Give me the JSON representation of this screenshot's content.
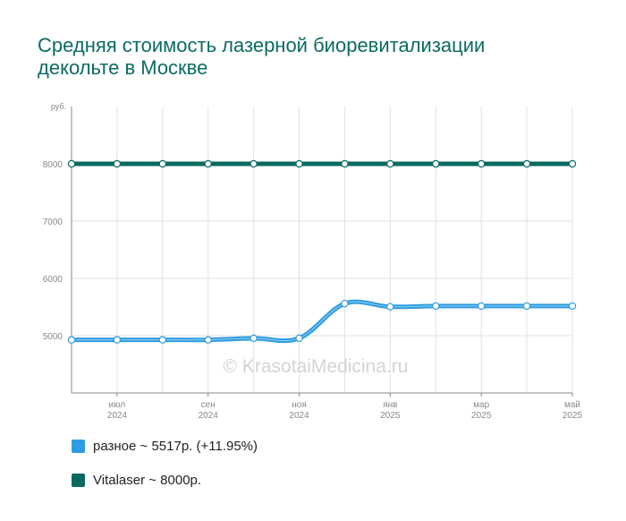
{
  "title": "Средняя стоимость лазерной биоревитализации декольте в Москве",
  "watermark": "© KrasotaiMedicina.ru",
  "chart_data": {
    "type": "line",
    "ylabel": "руб.",
    "ylim": [
      4000,
      9000
    ],
    "yticks": [
      5000,
      6000,
      7000,
      8000
    ],
    "grid": true,
    "x": [
      "2024-06",
      "2024-07",
      "2024-08",
      "2024-09",
      "2024-10",
      "2024-11",
      "2024-12",
      "2025-01",
      "2025-02",
      "2025-03",
      "2025-04",
      "2025-05"
    ],
    "xtick_labels": [
      {
        "month": "июл",
        "year": "2024",
        "index": 1
      },
      {
        "month": "сен",
        "year": "2024",
        "index": 3
      },
      {
        "month": "ноя",
        "year": "2024",
        "index": 5
      },
      {
        "month": "янв",
        "year": "2025",
        "index": 7
      },
      {
        "month": "мар",
        "year": "2025",
        "index": 9
      },
      {
        "month": "май",
        "year": "2025",
        "index": 11
      }
    ],
    "series": [
      {
        "name": "разное",
        "color": "#2e9ce0",
        "values": [
          4928,
          4928,
          4928,
          4928,
          4955,
          4955,
          5560,
          5505,
          5517,
          5517,
          5517,
          5517
        ]
      },
      {
        "name": "Vitalaser",
        "color": "#08695f",
        "values": [
          8000,
          8000,
          8000,
          8000,
          8000,
          8000,
          8000,
          8000,
          8000,
          8000,
          8000,
          8000
        ]
      }
    ]
  },
  "legend": [
    {
      "label": "разное ~ 5517р. (+11.95%)",
      "color": "#2e9ce0"
    },
    {
      "label": "Vitalaser ~ 8000р.",
      "color": "#08695f"
    }
  ]
}
